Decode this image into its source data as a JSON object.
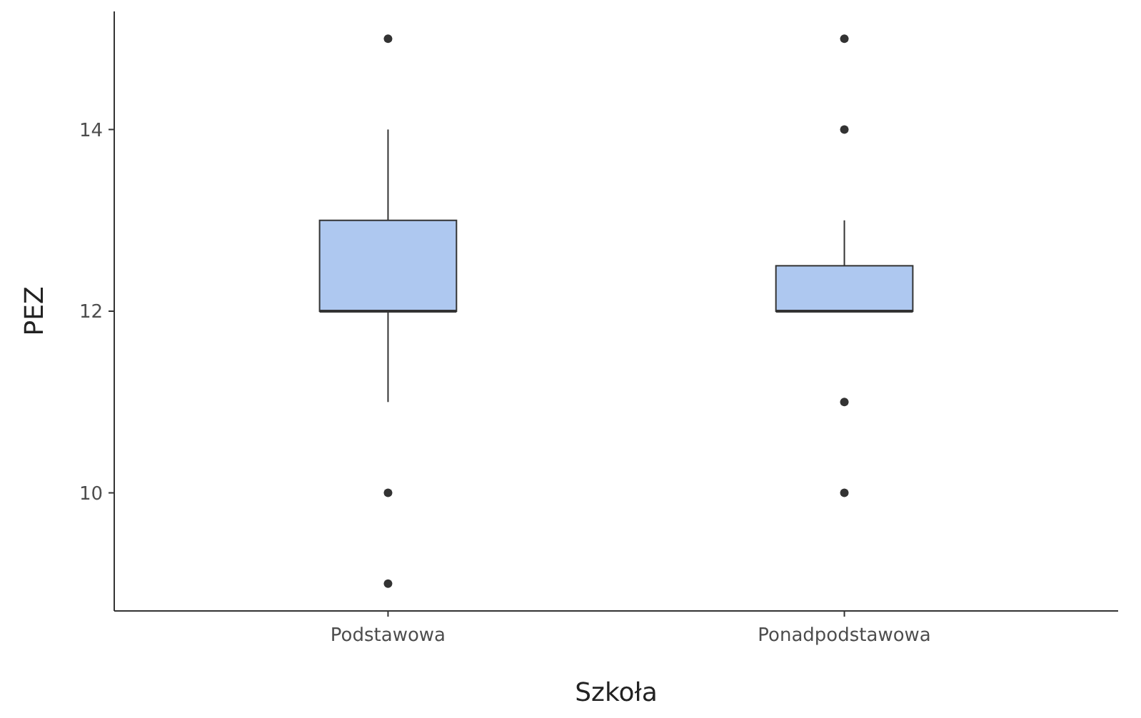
{
  "chart_data": {
    "type": "box",
    "xlabel": "Szkoła",
    "ylabel": "PEZ",
    "categories": [
      "Podstawowa",
      "Ponadpodstawowa"
    ],
    "series": [
      {
        "color": "#aec8f0",
        "boxes": [
          {
            "low": 11,
            "q1": 12,
            "median": 12,
            "q3": 13,
            "high": 14,
            "outliers": [
              15,
              10,
              9
            ]
          },
          {
            "low": 12,
            "q1": 12,
            "median": 12,
            "q3": 12.5,
            "high": 13,
            "outliers": [
              15,
              14,
              11,
              10
            ]
          }
        ]
      }
    ],
    "ylim": [
      8.7,
      15.3
    ],
    "yticks": [
      10,
      12,
      14
    ],
    "grid": false
  }
}
